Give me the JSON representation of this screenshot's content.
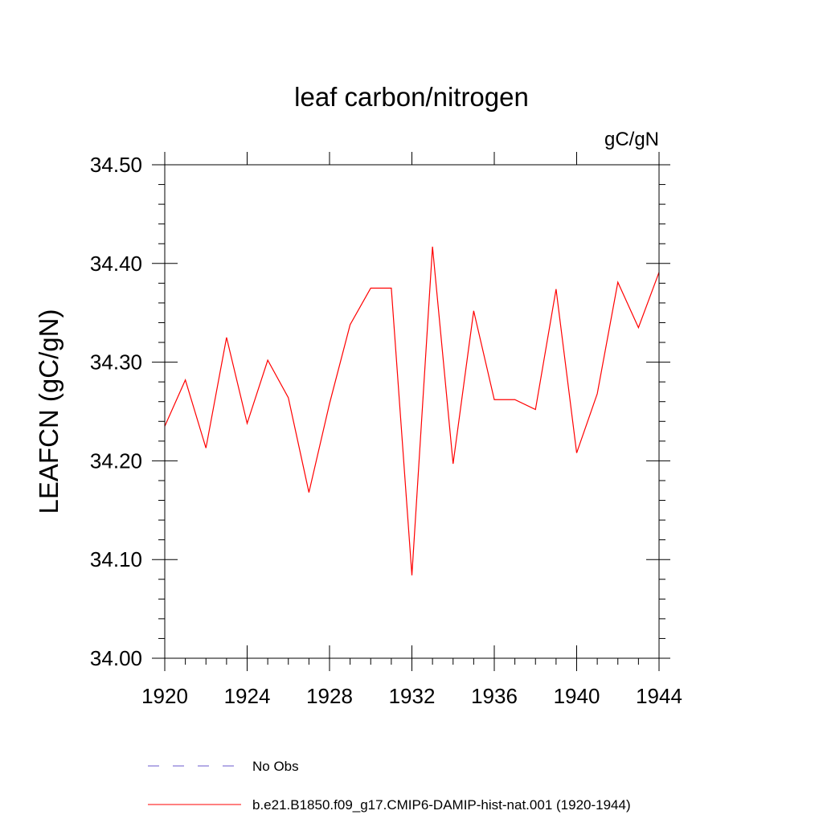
{
  "chart_data": {
    "type": "line",
    "title": "leaf carbon/nitrogen",
    "units_label": "gC/gN",
    "ylabel": "LEAFCN  (gC/gN)",
    "xlabel": "",
    "xlim": [
      1920,
      1944
    ],
    "ylim": [
      34.0,
      34.5
    ],
    "x_ticks": [
      1920,
      1924,
      1928,
      1932,
      1936,
      1940,
      1944
    ],
    "x_tick_labels": [
      "1920",
      "1924",
      "1928",
      "1932",
      "1936",
      "1940",
      "1944"
    ],
    "y_ticks": [
      34.0,
      34.1,
      34.2,
      34.3,
      34.4,
      34.5
    ],
    "y_tick_labels": [
      "34.00",
      "34.10",
      "34.20",
      "34.30",
      "34.40",
      "34.50"
    ],
    "grid": false,
    "legend_placement": "bottom",
    "series": [
      {
        "name": "b.e21.B1850.f09_g17.CMIP6-DAMIP-hist-nat.001 (1920-1944)",
        "color": "#ff0000",
        "style": "solid",
        "x": [
          1920,
          1921,
          1922,
          1923,
          1924,
          1925,
          1926,
          1927,
          1928,
          1929,
          1930,
          1931,
          1932,
          1933,
          1934,
          1935,
          1936,
          1937,
          1938,
          1939,
          1940,
          1941,
          1942,
          1943,
          1944
        ],
        "y": [
          34.235,
          34.282,
          34.213,
          34.325,
          34.238,
          34.302,
          34.264,
          34.168,
          34.258,
          34.338,
          34.375,
          34.375,
          34.084,
          34.417,
          34.197,
          34.352,
          34.262,
          34.262,
          34.252,
          34.374,
          34.208,
          34.268,
          34.381,
          34.335,
          34.391
        ]
      }
    ],
    "legend": [
      {
        "label": "No Obs",
        "color": "#6a5acd",
        "style": "dashed"
      },
      {
        "label": "b.e21.B1850.f09_g17.CMIP6-DAMIP-hist-nat.001 (1920-1944)",
        "color": "#ff0000",
        "style": "solid"
      }
    ]
  }
}
